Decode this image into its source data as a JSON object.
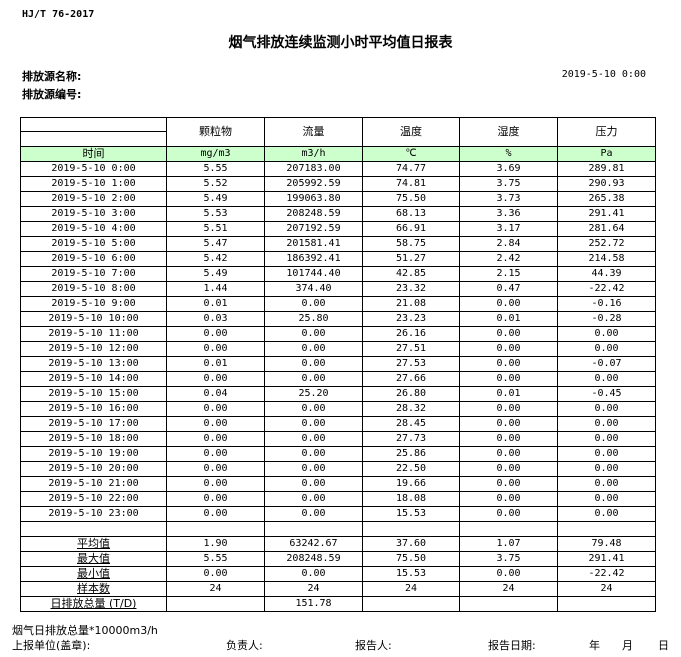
{
  "standard": "HJ/T  76-2017",
  "title": "烟气排放连续监测小时平均值日报表",
  "source_name_label": "排放源名称:",
  "source_id_label": "排放源编号:",
  "report_datetime": "2019-5-10 0:00",
  "columns": [
    "颗粒物",
    "流量",
    "温度",
    "湿度",
    "压力"
  ],
  "time_header": "时间",
  "units": [
    "mg/m3",
    "m3/h",
    "℃",
    "%",
    "Pa"
  ],
  "rows": [
    [
      "2019-5-10 0:00",
      "5.55",
      "207183.00",
      "74.77",
      "3.69",
      "289.81"
    ],
    [
      "2019-5-10 1:00",
      "5.52",
      "205992.59",
      "74.81",
      "3.75",
      "290.93"
    ],
    [
      "2019-5-10 2:00",
      "5.49",
      "199063.80",
      "75.50",
      "3.73",
      "265.38"
    ],
    [
      "2019-5-10 3:00",
      "5.53",
      "208248.59",
      "68.13",
      "3.36",
      "291.41"
    ],
    [
      "2019-5-10 4:00",
      "5.51",
      "207192.59",
      "66.91",
      "3.17",
      "281.64"
    ],
    [
      "2019-5-10 5:00",
      "5.47",
      "201581.41",
      "58.75",
      "2.84",
      "252.72"
    ],
    [
      "2019-5-10 6:00",
      "5.42",
      "186392.41",
      "51.27",
      "2.42",
      "214.58"
    ],
    [
      "2019-5-10 7:00",
      "5.49",
      "101744.40",
      "42.85",
      "2.15",
      "44.39"
    ],
    [
      "2019-5-10 8:00",
      "1.44",
      "374.40",
      "23.32",
      "0.47",
      "-22.42"
    ],
    [
      "2019-5-10 9:00",
      "0.01",
      "0.00",
      "21.08",
      "0.00",
      "-0.16"
    ],
    [
      "2019-5-10 10:00",
      "0.03",
      "25.80",
      "23.23",
      "0.01",
      "-0.28"
    ],
    [
      "2019-5-10 11:00",
      "0.00",
      "0.00",
      "26.16",
      "0.00",
      "0.00"
    ],
    [
      "2019-5-10 12:00",
      "0.00",
      "0.00",
      "27.51",
      "0.00",
      "0.00"
    ],
    [
      "2019-5-10 13:00",
      "0.01",
      "0.00",
      "27.53",
      "0.00",
      "-0.07"
    ],
    [
      "2019-5-10 14:00",
      "0.00",
      "0.00",
      "27.66",
      "0.00",
      "0.00"
    ],
    [
      "2019-5-10 15:00",
      "0.04",
      "25.20",
      "26.80",
      "0.01",
      "-0.45"
    ],
    [
      "2019-5-10 16:00",
      "0.00",
      "0.00",
      "28.32",
      "0.00",
      "0.00"
    ],
    [
      "2019-5-10 17:00",
      "0.00",
      "0.00",
      "28.45",
      "0.00",
      "0.00"
    ],
    [
      "2019-5-10 18:00",
      "0.00",
      "0.00",
      "27.73",
      "0.00",
      "0.00"
    ],
    [
      "2019-5-10 19:00",
      "0.00",
      "0.00",
      "25.86",
      "0.00",
      "0.00"
    ],
    [
      "2019-5-10 20:00",
      "0.00",
      "0.00",
      "22.50",
      "0.00",
      "0.00"
    ],
    [
      "2019-5-10 21:00",
      "0.00",
      "0.00",
      "19.66",
      "0.00",
      "0.00"
    ],
    [
      "2019-5-10 22:00",
      "0.00",
      "0.00",
      "18.08",
      "0.00",
      "0.00"
    ],
    [
      "2019-5-10 23:00",
      "0.00",
      "0.00",
      "15.53",
      "0.00",
      "0.00"
    ]
  ],
  "summary": [
    [
      "平均值",
      "1.90",
      "63242.67",
      "37.60",
      "1.07",
      "79.48"
    ],
    [
      "最大值",
      "5.55",
      "208248.59",
      "75.50",
      "3.75",
      "291.41"
    ],
    [
      "最小值",
      "0.00",
      "0.00",
      "15.53",
      "0.00",
      "-22.42"
    ],
    [
      "样本数",
      "24",
      "24",
      "24",
      "24",
      "24"
    ],
    [
      "日排放总量 (T/D)",
      "",
      "151.78",
      "",
      "",
      ""
    ]
  ],
  "footer": {
    "note": "烟气日排放总量*10000m3/h",
    "unit_label": "上报单位(盖章):",
    "person_label": "负责人:",
    "reporter_label": "报告人:",
    "date_label": "报告日期:",
    "year": "年",
    "month": "月",
    "day": "日"
  }
}
